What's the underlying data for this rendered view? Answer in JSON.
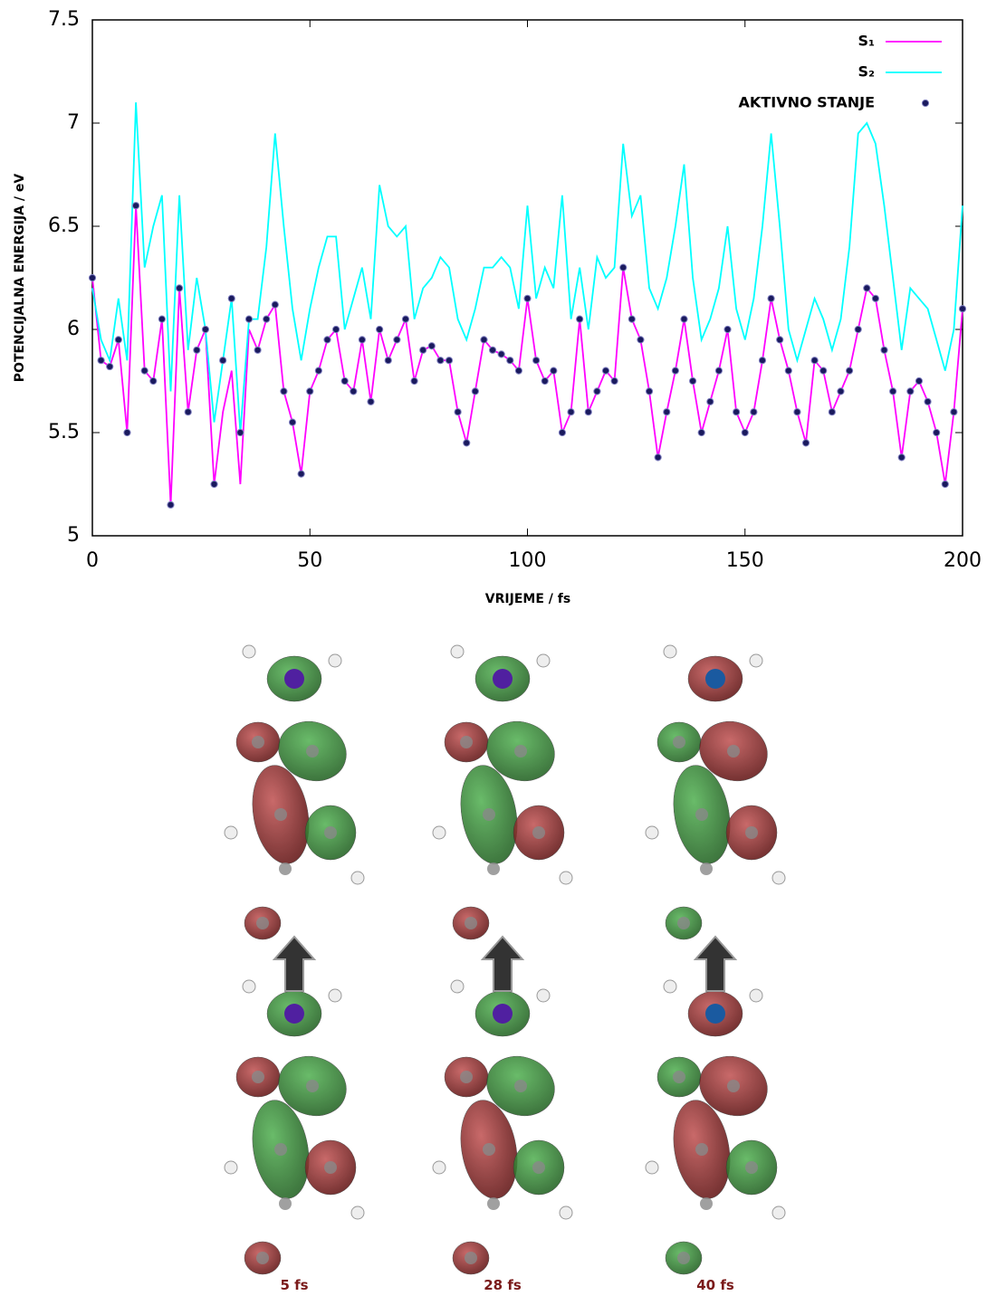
{
  "chart_data": {
    "type": "line",
    "x_label": "VRIJEME / fs",
    "y_label": "POTENCIJALNA ENERGIJA / eV",
    "xlim": [
      0,
      200
    ],
    "xticks": [
      0,
      50,
      100,
      150,
      200
    ],
    "ylim": [
      5,
      7.5
    ],
    "yticks": [
      5,
      5.5,
      6,
      6.5,
      7,
      7.5
    ],
    "grid": false,
    "legend": "top-right",
    "x": [
      0,
      2,
      4,
      6,
      8,
      10,
      12,
      14,
      16,
      18,
      20,
      22,
      24,
      26,
      28,
      30,
      32,
      34,
      36,
      38,
      40,
      42,
      44,
      46,
      48,
      50,
      52,
      54,
      56,
      58,
      60,
      62,
      64,
      66,
      68,
      70,
      72,
      74,
      76,
      78,
      80,
      82,
      84,
      86,
      88,
      90,
      92,
      94,
      96,
      98,
      100,
      102,
      104,
      106,
      108,
      110,
      112,
      114,
      116,
      118,
      120,
      122,
      124,
      126,
      128,
      130,
      132,
      134,
      136,
      138,
      140,
      142,
      144,
      146,
      148,
      150,
      152,
      154,
      156,
      158,
      160,
      162,
      164,
      166,
      168,
      170,
      172,
      174,
      176,
      178,
      180,
      182,
      184,
      186,
      188,
      190,
      192,
      194,
      196,
      198,
      200
    ],
    "series": [
      {
        "name": "S₁",
        "color": "#ff00ff",
        "mode": "line",
        "values": [
          6.25,
          5.85,
          5.82,
          5.95,
          5.5,
          6.6,
          5.8,
          5.75,
          6.05,
          5.15,
          6.2,
          5.6,
          5.9,
          6.0,
          5.25,
          5.6,
          5.8,
          5.25,
          6.0,
          5.9,
          6.05,
          6.12,
          5.7,
          5.55,
          5.3,
          5.7,
          5.8,
          5.95,
          6.0,
          5.75,
          5.7,
          5.95,
          5.65,
          6.0,
          5.85,
          5.95,
          6.05,
          5.75,
          5.9,
          5.92,
          5.85,
          5.85,
          5.6,
          5.45,
          5.7,
          5.95,
          5.9,
          5.88,
          5.85,
          5.8,
          6.15,
          5.85,
          5.75,
          5.8,
          5.5,
          5.6,
          6.05,
          5.6,
          5.7,
          5.8,
          5.75,
          6.3,
          6.05,
          5.95,
          5.7,
          5.38,
          5.6,
          5.8,
          6.05,
          5.75,
          5.5,
          5.65,
          5.8,
          6.0,
          5.6,
          5.5,
          5.6,
          5.85,
          6.15,
          5.95,
          5.8,
          5.6,
          5.45,
          5.85,
          5.8,
          5.6,
          5.7,
          5.8,
          6.0,
          6.2,
          6.15,
          5.9,
          5.7,
          5.38,
          5.7,
          5.75,
          5.65,
          5.5,
          5.25,
          5.6,
          6.1
        ]
      },
      {
        "name": "S₂",
        "color": "#00ffff",
        "mode": "line",
        "values": [
          6.2,
          5.95,
          5.85,
          6.15,
          5.85,
          7.1,
          6.3,
          6.5,
          6.65,
          5.7,
          6.65,
          5.9,
          6.25,
          6.0,
          5.55,
          5.85,
          6.15,
          5.5,
          6.05,
          6.05,
          6.4,
          6.95,
          6.5,
          6.1,
          5.85,
          6.1,
          6.3,
          6.45,
          6.45,
          6.0,
          6.15,
          6.3,
          6.05,
          6.7,
          6.5,
          6.45,
          6.5,
          6.05,
          6.2,
          6.25,
          6.35,
          6.3,
          6.05,
          5.95,
          6.1,
          6.3,
          6.3,
          6.35,
          6.3,
          6.1,
          6.6,
          6.15,
          6.3,
          6.2,
          6.65,
          6.05,
          6.3,
          6.0,
          6.35,
          6.25,
          6.3,
          6.9,
          6.55,
          6.65,
          6.2,
          6.1,
          6.25,
          6.5,
          6.8,
          6.25,
          5.95,
          6.05,
          6.2,
          6.5,
          6.1,
          5.95,
          6.15,
          6.5,
          6.95,
          6.5,
          6.0,
          5.85,
          6.0,
          6.15,
          6.05,
          5.9,
          6.05,
          6.4,
          6.95,
          7.0,
          6.9,
          6.6,
          6.25,
          5.9,
          6.2,
          6.15,
          6.1,
          5.95,
          5.8,
          6.0,
          6.6
        ]
      },
      {
        "name": "AKTIVNO STANJE",
        "color": "#1a1a5e",
        "mode": "markers",
        "values": [
          6.25,
          5.85,
          5.82,
          5.95,
          5.5,
          6.6,
          5.8,
          5.75,
          6.05,
          5.15,
          6.2,
          5.6,
          5.9,
          6.0,
          5.25,
          5.85,
          6.15,
          5.5,
          6.05,
          5.9,
          6.05,
          6.12,
          5.7,
          5.55,
          5.3,
          5.7,
          5.8,
          5.95,
          6.0,
          5.75,
          5.7,
          5.95,
          5.65,
          6.0,
          5.85,
          5.95,
          6.05,
          5.75,
          5.9,
          5.92,
          5.85,
          5.85,
          5.6,
          5.45,
          5.7,
          5.95,
          5.9,
          5.88,
          5.85,
          5.8,
          6.15,
          5.85,
          5.75,
          5.8,
          5.5,
          5.6,
          6.05,
          5.6,
          5.7,
          5.8,
          5.75,
          6.3,
          6.05,
          5.95,
          5.7,
          5.38,
          5.6,
          5.8,
          6.05,
          5.75,
          5.5,
          5.65,
          5.8,
          6.0,
          5.6,
          5.5,
          5.6,
          5.85,
          6.15,
          5.95,
          5.8,
          5.6,
          5.45,
          5.85,
          5.8,
          5.6,
          5.7,
          5.8,
          6.0,
          6.2,
          6.15,
          5.9,
          5.7,
          5.38,
          5.7,
          5.75,
          5.65,
          5.5,
          5.25,
          5.6,
          6.1
        ]
      }
    ]
  },
  "figure": {
    "captions": [
      "5 fs",
      "28 fs",
      "40 fs"
    ]
  }
}
